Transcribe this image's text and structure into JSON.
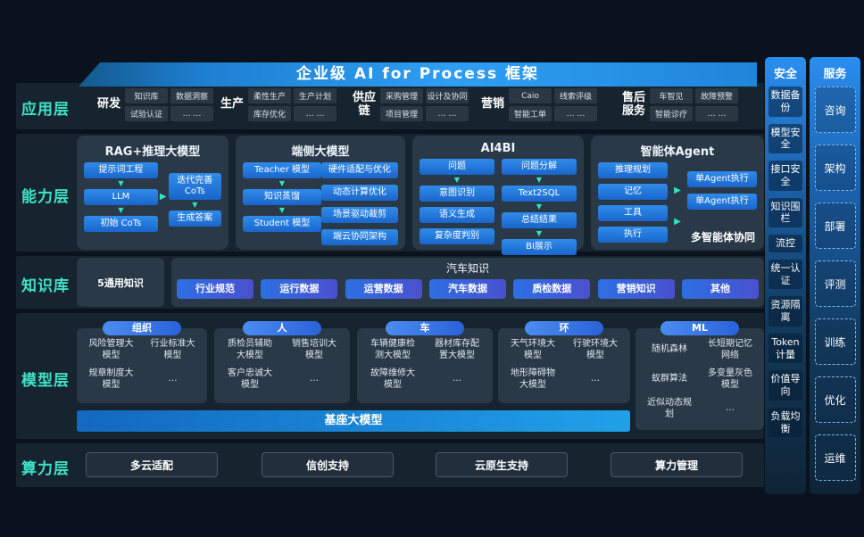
{
  "title": "企业级 AI for Process 框架",
  "colors": {
    "accent_teal": "#3fe3c6",
    "button_blue": "#2f8bea",
    "pill_gradient_start": "#2e6fe2",
    "pill_gradient_end": "#4a50ce",
    "banner_blue": "#2f9ef2",
    "box_bg": "#2a3947",
    "page_bg": "#0a131d"
  },
  "layers": {
    "application": {
      "label": "应用层",
      "groups": [
        {
          "label": "研发",
          "cells": [
            "知识库",
            "数据洞察",
            "试验认证",
            "… …"
          ]
        },
        {
          "label": "生产",
          "cells": [
            "柔性生产",
            "生产计划",
            "库存优化",
            "… …"
          ]
        },
        {
          "label": "供应链",
          "cells": [
            "采购管理",
            "设计及协同",
            "项目管理",
            "… …"
          ]
        },
        {
          "label": "营销",
          "cells": [
            "Caio",
            "线索评级",
            "智能工单",
            "… …"
          ]
        },
        {
          "label": "售后服务",
          "cells": [
            "车智见",
            "故障预警",
            "智能诊疗",
            "… …"
          ]
        }
      ]
    },
    "capability": {
      "label": "能力层",
      "boxes": [
        {
          "title": "RAG+推理大模型",
          "left": [
            "提示词工程",
            "LLM",
            "初始 CoTs"
          ],
          "right": [
            "迭代完善CoTs",
            "生成答案"
          ]
        },
        {
          "title": "端侧大模型",
          "left": [
            "Teacher 模型",
            "知识蒸馏",
            "Student 模型"
          ],
          "right": [
            "硬件适配与优化",
            "动态计算优化",
            "场景驱动裁剪",
            "端云协同架构"
          ]
        },
        {
          "title": "AI4BI",
          "left": [
            "问题",
            "意图识别",
            "语义生成",
            "复杂度判别"
          ],
          "right": [
            "问题分解",
            "Text2SQL",
            "总结结果",
            "BI展示"
          ]
        },
        {
          "title": "智能体Agent",
          "left": [
            "推理规划",
            "记忆",
            "工具",
            "执行"
          ],
          "right": [
            "单Agent执行",
            "单Agent执行"
          ],
          "note": "多智能体协同"
        }
      ]
    },
    "knowledge": {
      "label": "知识库",
      "general": "5通用知识",
      "auto_title": "汽车知识",
      "pills": [
        "行业规范",
        "运行数据",
        "运营数据",
        "汽车数据",
        "质检数据",
        "营销知识",
        "其他"
      ]
    },
    "model": {
      "label": "模型层",
      "base_bar": "基座大模型",
      "groups": [
        {
          "tag": "组织",
          "cells": [
            "风险管理大模型",
            "行业标准大模型",
            "规章制度大模型",
            "…"
          ]
        },
        {
          "tag": "人",
          "cells": [
            "质检员辅助大模型",
            "销售培训大模型",
            "客户忠诚大模型",
            "…"
          ]
        },
        {
          "tag": "车",
          "cells": [
            "车辆健康检测大模型",
            "器材库存配置大模型",
            "故障维修大模型",
            "…"
          ]
        },
        {
          "tag": "环",
          "cells": [
            "天气环境大模型",
            "行驶环境大模型",
            "地形障碍物大模型",
            "…"
          ]
        },
        {
          "tag": "ML",
          "cells": [
            "随机森林",
            "长短期记忆网络",
            "蚁群算法",
            "多变量灰色模型",
            "近似动态规划",
            "…"
          ]
        }
      ]
    },
    "compute": {
      "label": "算力层",
      "items": [
        "多云适配",
        "信创支持",
        "云原生支持",
        "算力管理"
      ]
    }
  },
  "security": {
    "title": "安全",
    "items": [
      "数据备份",
      "模型安全",
      "接口安全",
      "知识围栏",
      "流控",
      "统一认证",
      "资源隔离",
      "Token计量",
      "价值导向",
      "负载均衡"
    ]
  },
  "service": {
    "title": "服务",
    "items": [
      "咨询",
      "架构",
      "部署",
      "评测",
      "训练",
      "优化",
      "运维"
    ]
  }
}
